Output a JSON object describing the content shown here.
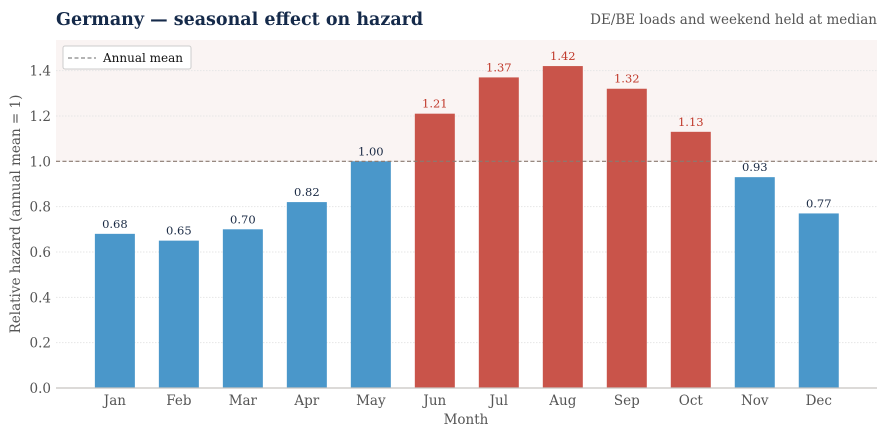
{
  "chart_data": {
    "type": "bar",
    "title": "Germany — seasonal effect on hazard",
    "subtitle": "DE/BE loads and weekend held at median",
    "xlabel": "Month",
    "ylabel": "Relative hazard  (annual mean = 1)",
    "categories": [
      "Jan",
      "Feb",
      "Mar",
      "Apr",
      "May",
      "Jun",
      "Jul",
      "Aug",
      "Sep",
      "Oct",
      "Nov",
      "Dec"
    ],
    "values": [
      0.68,
      0.65,
      0.7,
      0.82,
      1.0,
      1.21,
      1.37,
      1.42,
      1.32,
      1.13,
      0.93,
      0.77
    ],
    "value_labels": [
      "0.68",
      "0.65",
      "0.70",
      "0.82",
      "1.00",
      "1.21",
      "1.37",
      "1.42",
      "1.32",
      "1.13",
      "0.93",
      "0.77"
    ],
    "ylim": [
      0,
      1.535
    ],
    "yticks": [
      0.0,
      0.2,
      0.4,
      0.6,
      0.8,
      1.0,
      1.2,
      1.4
    ],
    "ytick_labels": [
      "0.0",
      "0.2",
      "0.4",
      "0.6",
      "0.8",
      "1.0",
      "1.2",
      "1.4"
    ],
    "reference_line": {
      "value": 1.0,
      "label": "Annual mean"
    },
    "grid": true,
    "legend_position": "top-left",
    "colors": {
      "below": "#4a97ca",
      "above": "#c9544a",
      "shade": "#faf4f3",
      "title": "#152a4a",
      "text": "#555555",
      "label_below": "#1a2a44",
      "label_above": "#c0392b"
    }
  }
}
